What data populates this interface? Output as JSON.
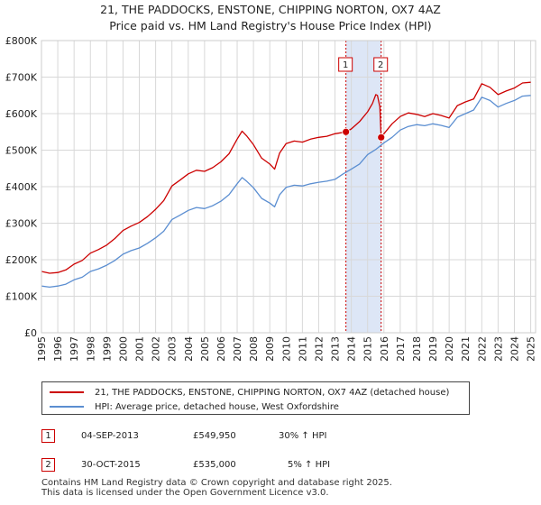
{
  "chart_data": {
    "type": "line",
    "title": "21, THE PADDOCKS, ENSTONE, CHIPPING NORTON, OX7 4AZ",
    "subtitle": "Price paid vs. HM Land Registry's House Price Index (HPI)",
    "xlabel": "",
    "ylabel": "",
    "xlim": [
      1995,
      2025.3
    ],
    "ylim": [
      0,
      800000
    ],
    "x_ticks": [
      "1995",
      "1996",
      "1997",
      "1998",
      "1999",
      "2000",
      "2001",
      "2002",
      "2003",
      "2004",
      "2005",
      "2006",
      "2007",
      "2008",
      "2009",
      "2010",
      "2011",
      "2012",
      "2013",
      "2014",
      "2015",
      "2016",
      "2017",
      "2018",
      "2019",
      "2020",
      "2021",
      "2022",
      "2023",
      "2024",
      "2025"
    ],
    "y_ticks": [
      {
        "value": 0,
        "label": "£0"
      },
      {
        "value": 100000,
        "label": "£100K"
      },
      {
        "value": 200000,
        "label": "£200K"
      },
      {
        "value": 300000,
        "label": "£300K"
      },
      {
        "value": 400000,
        "label": "£400K"
      },
      {
        "value": 500000,
        "label": "£500K"
      },
      {
        "value": 600000,
        "label": "£600K"
      },
      {
        "value": 700000,
        "label": "£700K"
      },
      {
        "value": 800000,
        "label": "£800K"
      }
    ],
    "grid": true,
    "shaded_region": {
      "from": 2013.67,
      "to": 2015.83
    },
    "series": [
      {
        "name": "21, THE PADDOCKS, ENSTONE, CHIPPING NORTON, OX7 4AZ (detached house)",
        "color": "#cc0000",
        "x": [
          1995.0,
          1995.5,
          1996.0,
          1996.5,
          1997.0,
          1997.5,
          1998.0,
          1998.5,
          1999.0,
          1999.5,
          2000.0,
          2000.5,
          2001.0,
          2001.5,
          2002.0,
          2002.5,
          2003.0,
          2003.5,
          2004.0,
          2004.5,
          2005.0,
          2005.5,
          2006.0,
          2006.5,
          2007.0,
          2007.3,
          2007.6,
          2008.0,
          2008.5,
          2009.0,
          2009.3,
          2009.6,
          2010.0,
          2010.5,
          2011.0,
          2011.5,
          2012.0,
          2012.5,
          2013.0,
          2013.67,
          2014.0,
          2014.5,
          2015.0,
          2015.3,
          2015.5,
          2015.6,
          2015.75,
          2015.83,
          2016.0,
          2016.5,
          2017.0,
          2017.5,
          2018.0,
          2018.5,
          2019.0,
          2019.5,
          2020.0,
          2020.5,
          2021.0,
          2021.5,
          2022.0,
          2022.5,
          2023.0,
          2023.5,
          2024.0,
          2024.5,
          2025.0
        ],
        "values": [
          168000,
          163000,
          165000,
          172000,
          188000,
          198000,
          218000,
          228000,
          240000,
          258000,
          280000,
          292000,
          302000,
          318000,
          338000,
          362000,
          402000,
          418000,
          435000,
          445000,
          442000,
          452000,
          468000,
          490000,
          530000,
          552000,
          538000,
          515000,
          478000,
          462000,
          448000,
          492000,
          518000,
          525000,
          522000,
          530000,
          535000,
          538000,
          545000,
          549950,
          558000,
          578000,
          605000,
          628000,
          652000,
          650000,
          618000,
          535000,
          545000,
          572000,
          592000,
          602000,
          598000,
          592000,
          600000,
          595000,
          588000,
          622000,
          632000,
          640000,
          682000,
          672000,
          652000,
          662000,
          670000,
          684000,
          686000
        ]
      },
      {
        "name": "HPI: Average price, detached house, West Oxfordshire",
        "color": "#5b8ed1",
        "x": [
          1995.0,
          1995.5,
          1996.0,
          1996.5,
          1997.0,
          1997.5,
          1998.0,
          1998.5,
          1999.0,
          1999.5,
          2000.0,
          2000.5,
          2001.0,
          2001.5,
          2002.0,
          2002.5,
          2003.0,
          2003.5,
          2004.0,
          2004.5,
          2005.0,
          2005.5,
          2006.0,
          2006.5,
          2007.0,
          2007.3,
          2007.6,
          2008.0,
          2008.5,
          2009.0,
          2009.3,
          2009.6,
          2010.0,
          2010.5,
          2011.0,
          2011.5,
          2012.0,
          2012.5,
          2013.0,
          2013.5,
          2014.0,
          2014.5,
          2015.0,
          2015.5,
          2016.0,
          2016.5,
          2017.0,
          2017.5,
          2018.0,
          2018.5,
          2019.0,
          2019.5,
          2020.0,
          2020.5,
          2021.0,
          2021.5,
          2022.0,
          2022.5,
          2023.0,
          2023.5,
          2024.0,
          2024.5,
          2025.0
        ],
        "values": [
          128000,
          125000,
          128000,
          133000,
          145000,
          152000,
          168000,
          175000,
          185000,
          198000,
          215000,
          225000,
          232000,
          245000,
          260000,
          278000,
          310000,
          322000,
          335000,
          343000,
          340000,
          348000,
          360000,
          378000,
          408000,
          425000,
          414000,
          397000,
          368000,
          355000,
          345000,
          378000,
          398000,
          404000,
          402000,
          408000,
          412000,
          415000,
          420000,
          435000,
          448000,
          462000,
          488000,
          502000,
          520000,
          535000,
          555000,
          565000,
          570000,
          567000,
          572000,
          568000,
          562000,
          590000,
          600000,
          610000,
          645000,
          636000,
          618000,
          628000,
          636000,
          648000,
          650000
        ]
      }
    ],
    "transactions": [
      {
        "label": "1",
        "x": 2013.67,
        "value": 549950
      },
      {
        "label": "2",
        "x": 2015.83,
        "value": 535000
      }
    ]
  },
  "header": {
    "title": "21, THE PADDOCKS, ENSTONE, CHIPPING NORTON, OX7 4AZ",
    "subtitle": "Price paid vs. HM Land Registry's House Price Index (HPI)"
  },
  "legend": {
    "items": [
      {
        "label": "21, THE PADDOCKS, ENSTONE, CHIPPING NORTON, OX7 4AZ (detached house)",
        "color": "#cc0000"
      },
      {
        "label": "HPI: Average price, detached house, West Oxfordshire",
        "color": "#5b8ed1"
      }
    ]
  },
  "transactions_table": [
    {
      "num": "1",
      "date": "04-SEP-2013",
      "price": "£549,950",
      "hpi": "30% ↑ HPI"
    },
    {
      "num": "2",
      "date": "30-OCT-2015",
      "price": "£535,000",
      "hpi": "5% ↑ HPI"
    }
  ],
  "footer": {
    "line1": "Contains HM Land Registry data © Crown copyright and database right 2025.",
    "line2": "This data is licensed under the Open Government Licence v3.0."
  }
}
